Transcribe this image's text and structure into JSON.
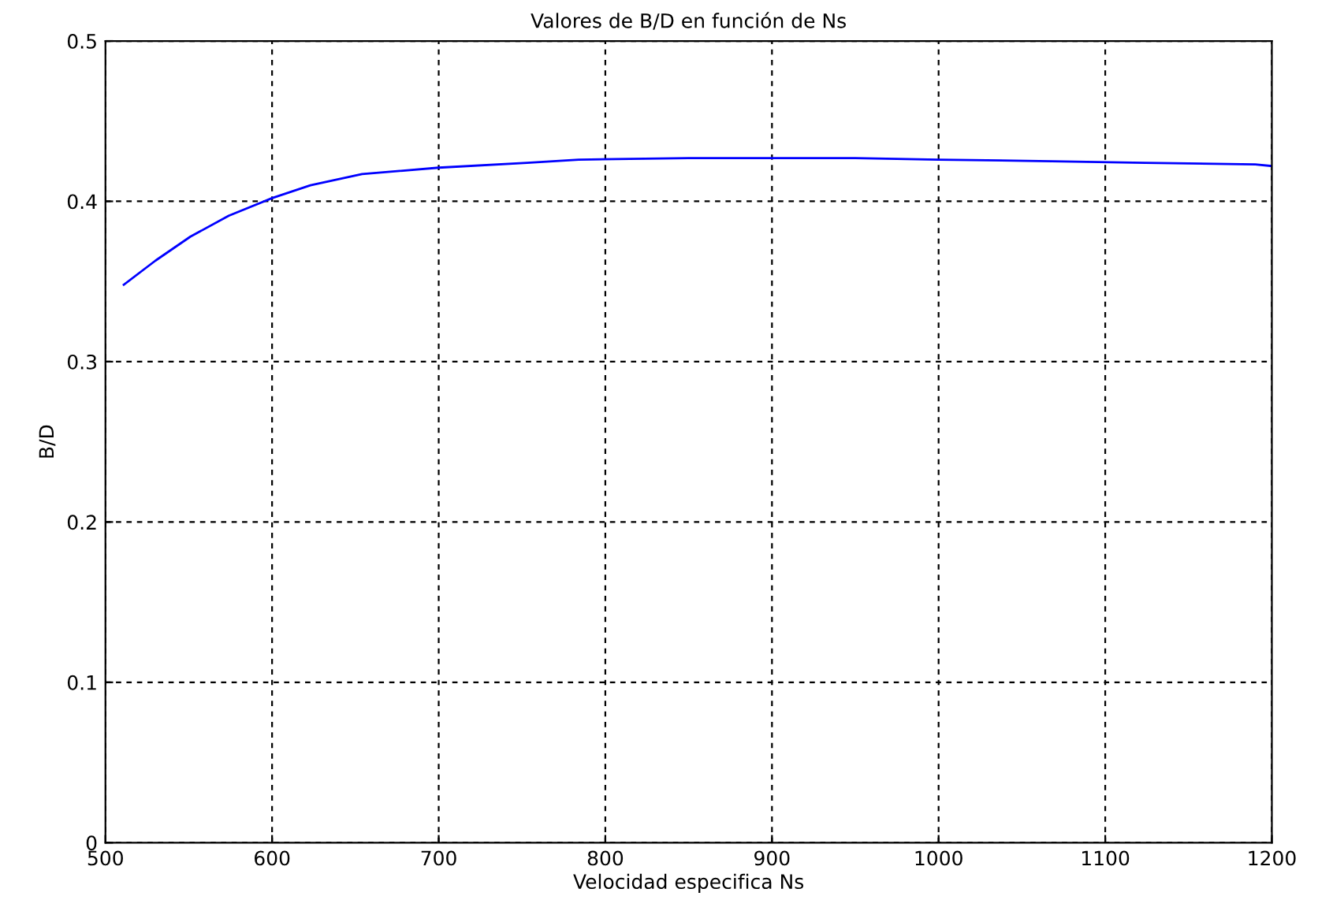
{
  "chart_data": {
    "type": "line",
    "title": "Valores de B/D en función de Ns",
    "xlabel": "Velocidad especifica Ns",
    "ylabel": "B/D",
    "x": [
      511,
      530,
      551,
      574,
      600,
      623,
      654,
      700,
      753,
      784,
      850,
      950,
      1000,
      1068,
      1124,
      1190,
      1200
    ],
    "series": [
      {
        "color": "#0000ff",
        "values": [
          0.348,
          0.363,
          0.378,
          0.391,
          0.402,
          0.41,
          0.417,
          0.421,
          0.424,
          0.426,
          0.427,
          0.427,
          0.426,
          0.425,
          0.424,
          0.423,
          0.422
        ]
      }
    ],
    "xlim": [
      500,
      1200
    ],
    "ylim": [
      0,
      0.5
    ],
    "xticks": [
      500,
      600,
      700,
      800,
      900,
      1000,
      1100,
      1200
    ],
    "yticks": [
      0,
      0.1,
      0.2,
      0.3,
      0.4,
      0.5
    ],
    "grid": true,
    "line_style": "solid"
  }
}
